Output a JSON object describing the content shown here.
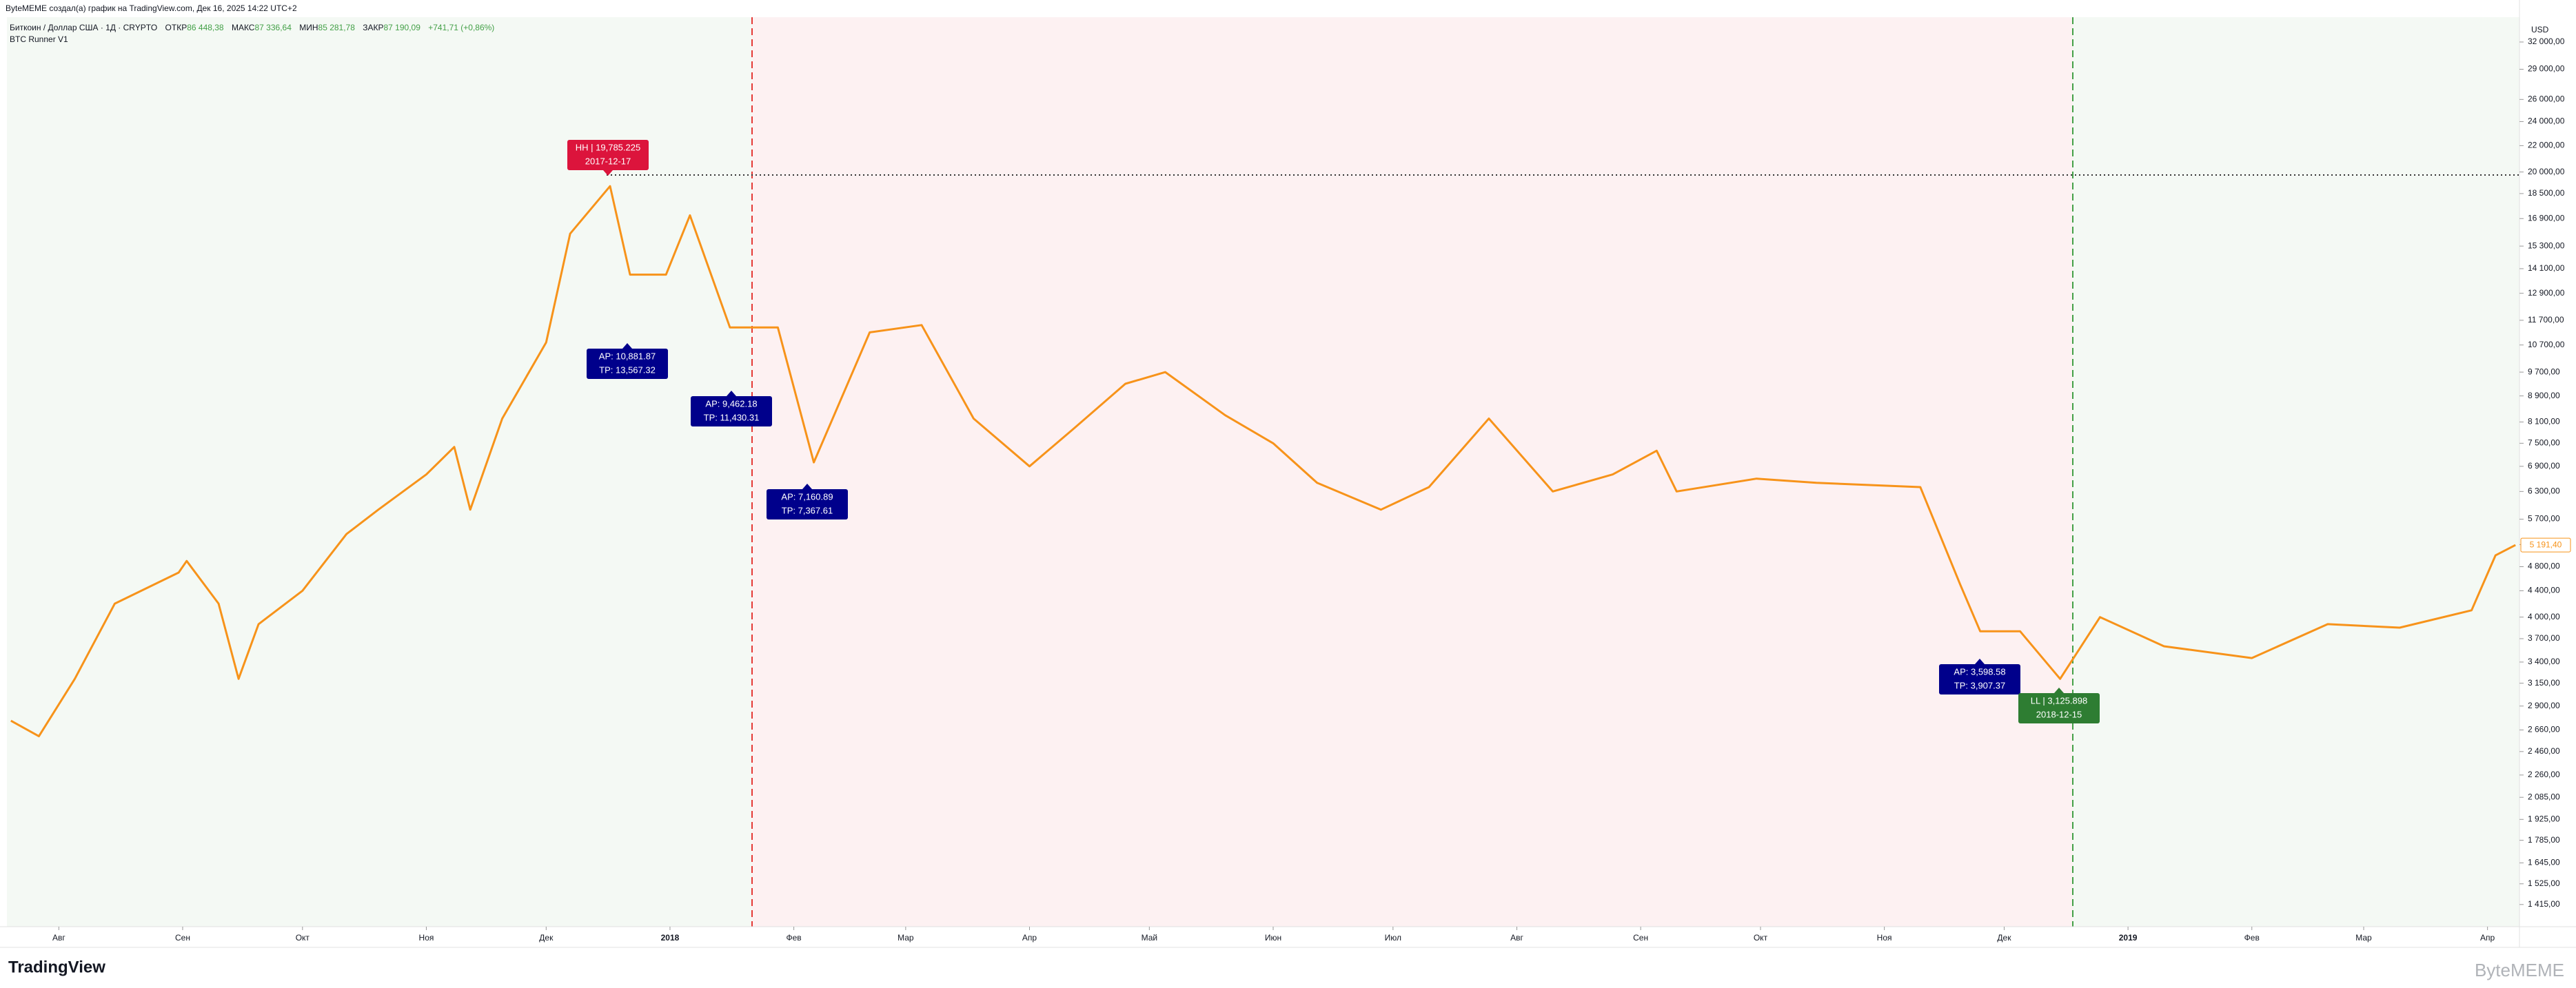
{
  "header": {
    "author_line": "ByteMEME создал(а) график на TradingView.com, Дек 16, 2025 14:22 UTC+2",
    "symbol": "Биткоин / Доллар США · 1Д · CRYPTO",
    "open_label": "ОТКР",
    "open": "86 448,38",
    "high_label": "МАКС",
    "high": "87 336,64",
    "low_label": "МИН",
    "low": "85 281,78",
    "close_label": "ЗАКР",
    "close": "87 190,09",
    "change": "+741,71 (+0,86%)",
    "indicator": "BTC Runner V1"
  },
  "footer": {
    "logo": "TradingView",
    "watermark": "ByteMEME"
  },
  "chart_data": {
    "type": "line",
    "currency": "USD",
    "log_scale": true,
    "color": "#f7931a",
    "x": [
      "2017-07-20",
      "2017-07-27",
      "2017-08-05",
      "2017-08-15",
      "2017-08-31",
      "2017-09-02",
      "2017-09-10",
      "2017-09-15",
      "2017-09-20",
      "2017-10-01",
      "2017-10-12",
      "2017-10-20",
      "2017-11-01",
      "2017-11-08",
      "2017-11-12",
      "2017-11-20",
      "2017-12-01",
      "2017-12-07",
      "2017-12-17",
      "2017-12-22",
      "2017-12-31",
      "2018-01-06",
      "2018-01-16",
      "2018-01-28",
      "2018-02-06",
      "2018-02-20",
      "2018-03-05",
      "2018-03-18",
      "2018-04-01",
      "2018-04-12",
      "2018-04-25",
      "2018-05-05",
      "2018-05-20",
      "2018-06-01",
      "2018-06-12",
      "2018-06-28",
      "2018-07-10",
      "2018-07-25",
      "2018-08-10",
      "2018-08-25",
      "2018-09-05",
      "2018-09-10",
      "2018-09-30",
      "2018-10-15",
      "2018-11-10",
      "2018-11-20",
      "2018-11-25",
      "2018-12-05",
      "2018-12-15",
      "2018-12-25",
      "2019-01-10",
      "2019-02-01",
      "2019-02-20",
      "2019-03-10",
      "2019-03-28",
      "2019-04-03",
      "2019-04-08"
    ],
    "values": [
      2750,
      2600,
      3200,
      4200,
      4700,
      4900,
      4200,
      3200,
      3900,
      4400,
      5400,
      5900,
      6700,
      7400,
      5900,
      8200,
      10800,
      16000,
      19000,
      13800,
      13800,
      17100,
      11400,
      11400,
      7000,
      11200,
      11500,
      8200,
      6900,
      7900,
      9300,
      9700,
      8300,
      7500,
      6500,
      5900,
      6400,
      8200,
      6300,
      6700,
      7300,
      6300,
      6600,
      6500,
      6400,
      4500,
      3800,
      3800,
      3200,
      4000,
      3600,
      3450,
      3900,
      3850,
      4100,
      5000,
      5190
    ],
    "last_price_label": "5 191,40",
    "xlim": [
      "2017-07-19",
      "2019-04-09"
    ],
    "xticks": [
      {
        "value": "2017-08-01",
        "label": "Авг"
      },
      {
        "value": "2017-09-01",
        "label": "Сен"
      },
      {
        "value": "2017-10-01",
        "label": "Окт"
      },
      {
        "value": "2017-11-01",
        "label": "Ноя"
      },
      {
        "value": "2017-12-01",
        "label": "Дек"
      },
      {
        "value": "2018-01-01",
        "label": "2018"
      },
      {
        "value": "2018-02-01",
        "label": "Фев"
      },
      {
        "value": "2018-03-01",
        "label": "Мар"
      },
      {
        "value": "2018-04-01",
        "label": "Апр"
      },
      {
        "value": "2018-05-01",
        "label": "Май"
      },
      {
        "value": "2018-06-01",
        "label": "Июн"
      },
      {
        "value": "2018-07-01",
        "label": "Июл"
      },
      {
        "value": "2018-08-01",
        "label": "Авг"
      },
      {
        "value": "2018-09-01",
        "label": "Сен"
      },
      {
        "value": "2018-10-01",
        "label": "Окт"
      },
      {
        "value": "2018-11-01",
        "label": "Ноя"
      },
      {
        "value": "2018-12-01",
        "label": "Дек"
      },
      {
        "value": "2019-01-01",
        "label": "2019"
      },
      {
        "value": "2019-02-01",
        "label": "Фев"
      },
      {
        "value": "2019-03-01",
        "label": "Мар"
      },
      {
        "value": "2019-04-01",
        "label": "Апр"
      }
    ],
    "ylim": [
      1306,
      35000
    ],
    "yticks": [
      {
        "value": 32000,
        "label": "32 000,00"
      },
      {
        "value": 29000,
        "label": "29 000,00"
      },
      {
        "value": 26000,
        "label": "26 000,00"
      },
      {
        "value": 24000,
        "label": "24 000,00"
      },
      {
        "value": 22000,
        "label": "22 000,00"
      },
      {
        "value": 20000,
        "label": "20 000,00"
      },
      {
        "value": 18500,
        "label": "18 500,00"
      },
      {
        "value": 16900,
        "label": "16 900,00"
      },
      {
        "value": 15300,
        "label": "15 300,00"
      },
      {
        "value": 14100,
        "label": "14 100,00"
      },
      {
        "value": 12900,
        "label": "12 900,00"
      },
      {
        "value": 11700,
        "label": "11 700,00"
      },
      {
        "value": 10700,
        "label": "10 700,00"
      },
      {
        "value": 9700,
        "label": "9 700,00"
      },
      {
        "value": 8900,
        "label": "8 900,00"
      },
      {
        "value": 8100,
        "label": "8 100,00"
      },
      {
        "value": 7500,
        "label": "7 500,00"
      },
      {
        "value": 6900,
        "label": "6 900,00"
      },
      {
        "value": 6300,
        "label": "6 300,00"
      },
      {
        "value": 5700,
        "label": "5 700,00"
      },
      {
        "value": 5200,
        "label": "5 200,00"
      },
      {
        "value": 4800,
        "label": "4 800,00"
      },
      {
        "value": 4400,
        "label": "4 400,00"
      },
      {
        "value": 4000,
        "label": "4 000,00"
      },
      {
        "value": 3700,
        "label": "3 700,00"
      },
      {
        "value": 3400,
        "label": "3 400,00"
      },
      {
        "value": 3150,
        "label": "3 150,00"
      },
      {
        "value": 2900,
        "label": "2 900,00"
      },
      {
        "value": 2660,
        "label": "2 660,00"
      },
      {
        "value": 2460,
        "label": "2 460,00"
      },
      {
        "value": 2260,
        "label": "2 260,00"
      },
      {
        "value": 2085,
        "label": "2 085,00"
      },
      {
        "value": 1925,
        "label": "1 925,00"
      },
      {
        "value": 1785,
        "label": "1 785,00"
      },
      {
        "value": 1645,
        "label": "1 645,00"
      },
      {
        "value": 1525,
        "label": "1 525,00"
      },
      {
        "value": 1415,
        "label": "1 415,00"
      }
    ],
    "annotations": [
      {
        "line1": "HH | 19,785.225",
        "line2": "2017-12-17"
      },
      {
        "line1": "AP: 10,881.87",
        "line2": "TP: 13,567.32"
      },
      {
        "line1": "AP: 9,462.18",
        "line2": "TP: 11,430.31"
      },
      {
        "line1": "AP: 7,160.89",
        "line2": "TP: 7,367.61"
      },
      {
        "line1": "AP: 3,598.58",
        "line2": "TP: 3,907.37"
      },
      {
        "line1": "LL | 3,125.898",
        "line2": "2018-12-15"
      }
    ]
  }
}
